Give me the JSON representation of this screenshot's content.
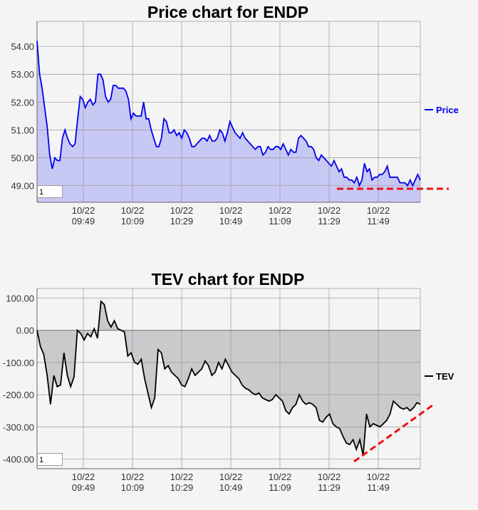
{
  "charts": {
    "price": {
      "title": "Price chart for ENDP",
      "zoom_value": "1"
    },
    "tev": {
      "title": "TEV chart for ENDP",
      "zoom_value": "1"
    }
  },
  "colors": {
    "price_line": "#0000ee",
    "price_fill": "#c8c8f4",
    "tev_line": "#000000",
    "tev_fill": "#c8cacc",
    "trend_line": "#ee1111",
    "grid": "#999999"
  },
  "chart_data": [
    {
      "type": "area",
      "title": "Price chart for ENDP",
      "xlabel": "",
      "ylabel": "",
      "x_ticks": [
        [
          "10/22",
          "09:49"
        ],
        [
          "10/22",
          "10:09"
        ],
        [
          "10/22",
          "10:29"
        ],
        [
          "10/22",
          "10:49"
        ],
        [
          "10/22",
          "11:09"
        ],
        [
          "10/22",
          "11:29"
        ],
        [
          "10/22",
          "11:49"
        ]
      ],
      "y_ticks": [
        "49.00",
        "50.00",
        "51.00",
        "52.00",
        "53.00",
        "54.00"
      ],
      "ylim": [
        48.4,
        54.9
      ],
      "grid": true,
      "legend_position": "right",
      "series": [
        {
          "name": "Price",
          "values": [
            54.2,
            53.0,
            52.5,
            51.8,
            51.1,
            50.1,
            49.6,
            50.0,
            49.9,
            49.9,
            50.7,
            51.0,
            50.7,
            50.5,
            50.4,
            50.5,
            51.4,
            52.2,
            52.1,
            51.8,
            52.0,
            52.1,
            51.9,
            52.0,
            53.0,
            53.0,
            52.8,
            52.2,
            52.0,
            52.1,
            52.6,
            52.6,
            52.5,
            52.5,
            52.5,
            52.4,
            52.1,
            51.4,
            51.6,
            51.5,
            51.5,
            51.5,
            52.0,
            51.4,
            51.4,
            51.0,
            50.7,
            50.4,
            50.4,
            50.7,
            51.4,
            51.3,
            50.9,
            50.9,
            51.0,
            50.8,
            50.9,
            50.7,
            51.0,
            50.9,
            50.7,
            50.4,
            50.4,
            50.5,
            50.6,
            50.7,
            50.7,
            50.6,
            50.8,
            50.6,
            50.6,
            50.7,
            51.0,
            50.9,
            50.6,
            50.9,
            51.3,
            51.1,
            50.9,
            50.8,
            50.7,
            50.9,
            50.7,
            50.6,
            50.5,
            50.4,
            50.3,
            50.4,
            50.4,
            50.1,
            50.2,
            50.4,
            50.3,
            50.3,
            50.4,
            50.4,
            50.3,
            50.5,
            50.3,
            50.1,
            50.3,
            50.2,
            50.2,
            50.7,
            50.8,
            50.7,
            50.6,
            50.4,
            50.4,
            50.3,
            50.0,
            49.9,
            50.1,
            50.0,
            49.9,
            49.8,
            49.7,
            49.9,
            49.7,
            49.5,
            49.6,
            49.3,
            49.3,
            49.2,
            49.2,
            49.1,
            49.3,
            49.0,
            49.2,
            49.8,
            49.5,
            49.6,
            49.2,
            49.3,
            49.3,
            49.4,
            49.4,
            49.5,
            49.7,
            49.3,
            49.3,
            49.3,
            49.3,
            49.1,
            49.1,
            49.1,
            49.0,
            49.2,
            49.0,
            49.2,
            49.4,
            49.2
          ]
        }
      ]
    },
    {
      "type": "area",
      "title": "TEV chart for ENDP",
      "xlabel": "",
      "ylabel": "",
      "x_ticks": [
        [
          "10/22",
          "09:49"
        ],
        [
          "10/22",
          "10:09"
        ],
        [
          "10/22",
          "10:29"
        ],
        [
          "10/22",
          "10:49"
        ],
        [
          "10/22",
          "11:09"
        ],
        [
          "10/22",
          "11:29"
        ],
        [
          "10/22",
          "11:49"
        ]
      ],
      "y_ticks": [
        "100.00",
        "0.00",
        "-100.00",
        "-200.00",
        "-300.00",
        "-400.00"
      ],
      "ylim": [
        -430,
        130
      ],
      "grid": true,
      "legend_position": "right",
      "series": [
        {
          "name": "TEV",
          "values": [
            0,
            -50,
            -75,
            -140,
            -230,
            -140,
            -175,
            -170,
            -70,
            -140,
            -175,
            -145,
            0,
            -10,
            -30,
            -10,
            -20,
            5,
            -25,
            90,
            80,
            30,
            10,
            30,
            5,
            0,
            -5,
            -80,
            -70,
            -100,
            -105,
            -90,
            -150,
            -195,
            -240,
            -210,
            -60,
            -70,
            -120,
            -110,
            -130,
            -140,
            -150,
            -170,
            -175,
            -150,
            -120,
            -140,
            -130,
            -120,
            -95,
            -110,
            -140,
            -130,
            -100,
            -120,
            -90,
            -110,
            -130,
            -140,
            -150,
            -170,
            -180,
            -185,
            -195,
            -200,
            -195,
            -210,
            -215,
            -220,
            -215,
            -200,
            -210,
            -220,
            -250,
            -260,
            -240,
            -230,
            -200,
            -220,
            -230,
            -225,
            -230,
            -240,
            -280,
            -285,
            -270,
            -260,
            -290,
            -300,
            -305,
            -330,
            -350,
            -355,
            -340,
            -370,
            -340,
            -390,
            -260,
            -300,
            -290,
            -295,
            -300,
            -290,
            -280,
            -260,
            -220,
            -230,
            -240,
            -245,
            -240,
            -250,
            -240,
            -225,
            -230
          ]
        }
      ]
    }
  ]
}
